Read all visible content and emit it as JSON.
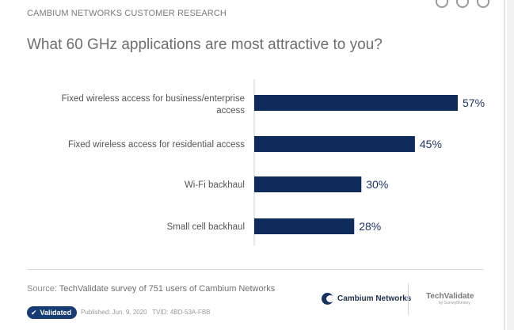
{
  "header": "CAMBIUM NETWORKS CUSTOMER RESEARCH",
  "title": "What 60 GHz applications are most attractive to you?",
  "chart_data": {
    "type": "bar",
    "orientation": "horizontal",
    "categories": [
      "Fixed wireless access for business/enterprise access",
      "Fixed wireless access for residential access",
      "Wi-Fi backhaul",
      "Small cell backhaul"
    ],
    "category_lines": [
      [
        "Fixed wireless access for business/enterprise",
        "access"
      ],
      [
        "Fixed wireless access for residential access"
      ],
      [
        "Wi-Fi backhaul"
      ],
      [
        "Small cell backhaul"
      ]
    ],
    "values": [
      57,
      45,
      30,
      28
    ],
    "value_labels": [
      "57%",
      "45%",
      "30%",
      "28%"
    ],
    "xlim": [
      0,
      57
    ],
    "bar_color": "#0f2b5c",
    "grid": false,
    "legend": "none"
  },
  "footer": {
    "source_label": "Source:",
    "source_text": "TechValidate survey of 751 users of Cambium Networks",
    "badge": "Validated",
    "published": "Published: Jun. 9, 2020",
    "tvid": "TVID: 4BD-53A-FBB"
  },
  "brands": {
    "cambium": "Cambium Networks",
    "techvalidate": "TechValidate",
    "techvalidate_sub": "by SurveyMonkey"
  }
}
